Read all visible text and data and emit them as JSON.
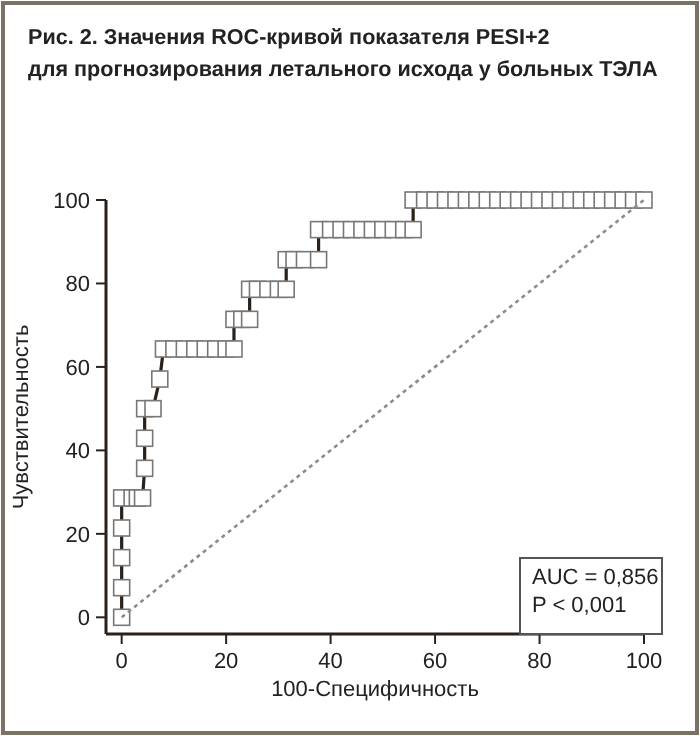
{
  "chart_data": {
    "type": "line",
    "title": "Рис. 2. Значения ROC-кривой показателя PESI+2\nдля прогнозирования летального исхода у больных ТЭЛА",
    "xlabel": "100-Специфичность",
    "ylabel": "Чувствительность",
    "xlim": [
      -3,
      100
    ],
    "ylim": [
      -4,
      100
    ],
    "xticks": [
      0,
      20,
      40,
      60,
      80,
      100
    ],
    "yticks": [
      0,
      20,
      40,
      60,
      80,
      100
    ],
    "grid": false,
    "annotations": [
      "AUC = 0,856",
      "P < 0,001"
    ],
    "series": [
      {
        "type": "line",
        "color": "#2b2118",
        "marker": "square",
        "line_style": "solid",
        "x": [
          0,
          0,
          0,
          0,
          0,
          2,
          3,
          4,
          4.4,
          4.4,
          4.4,
          6,
          7.3,
          8,
          10,
          12,
          14,
          16,
          18,
          20,
          21.5,
          21.5,
          23,
          24.5,
          24.5,
          26,
          28,
          30,
          31.5,
          31.5,
          33,
          35,
          37.7,
          37.7,
          40,
          42,
          44,
          46,
          48,
          50,
          52,
          54,
          55.8,
          55.8,
          58,
          60,
          62,
          64,
          66,
          68,
          70,
          72,
          74,
          76,
          78,
          80,
          82,
          84,
          86,
          88,
          90,
          92,
          94,
          96,
          98,
          100
        ],
        "values": [
          0,
          7.1,
          14.3,
          21.4,
          28.6,
          28.6,
          28.6,
          28.6,
          35.7,
          42.9,
          50,
          50,
          57.1,
          64.3,
          64.3,
          64.3,
          64.3,
          64.3,
          64.3,
          64.3,
          64.3,
          71.4,
          71.4,
          71.4,
          78.6,
          78.6,
          78.6,
          78.6,
          78.6,
          85.7,
          85.7,
          85.7,
          85.7,
          92.9,
          92.9,
          92.9,
          92.9,
          92.9,
          92.9,
          92.9,
          92.9,
          92.9,
          92.9,
          100,
          100,
          100,
          100,
          100,
          100,
          100,
          100,
          100,
          100,
          100,
          100,
          100,
          100,
          100,
          100,
          100,
          100,
          100,
          100,
          100,
          100,
          100
        ]
      },
      {
        "type": "line",
        "color": "#8c8c8c",
        "marker": "none",
        "line_style": "dotted",
        "x": [
          0,
          100
        ],
        "values": [
          0,
          100
        ]
      }
    ]
  }
}
